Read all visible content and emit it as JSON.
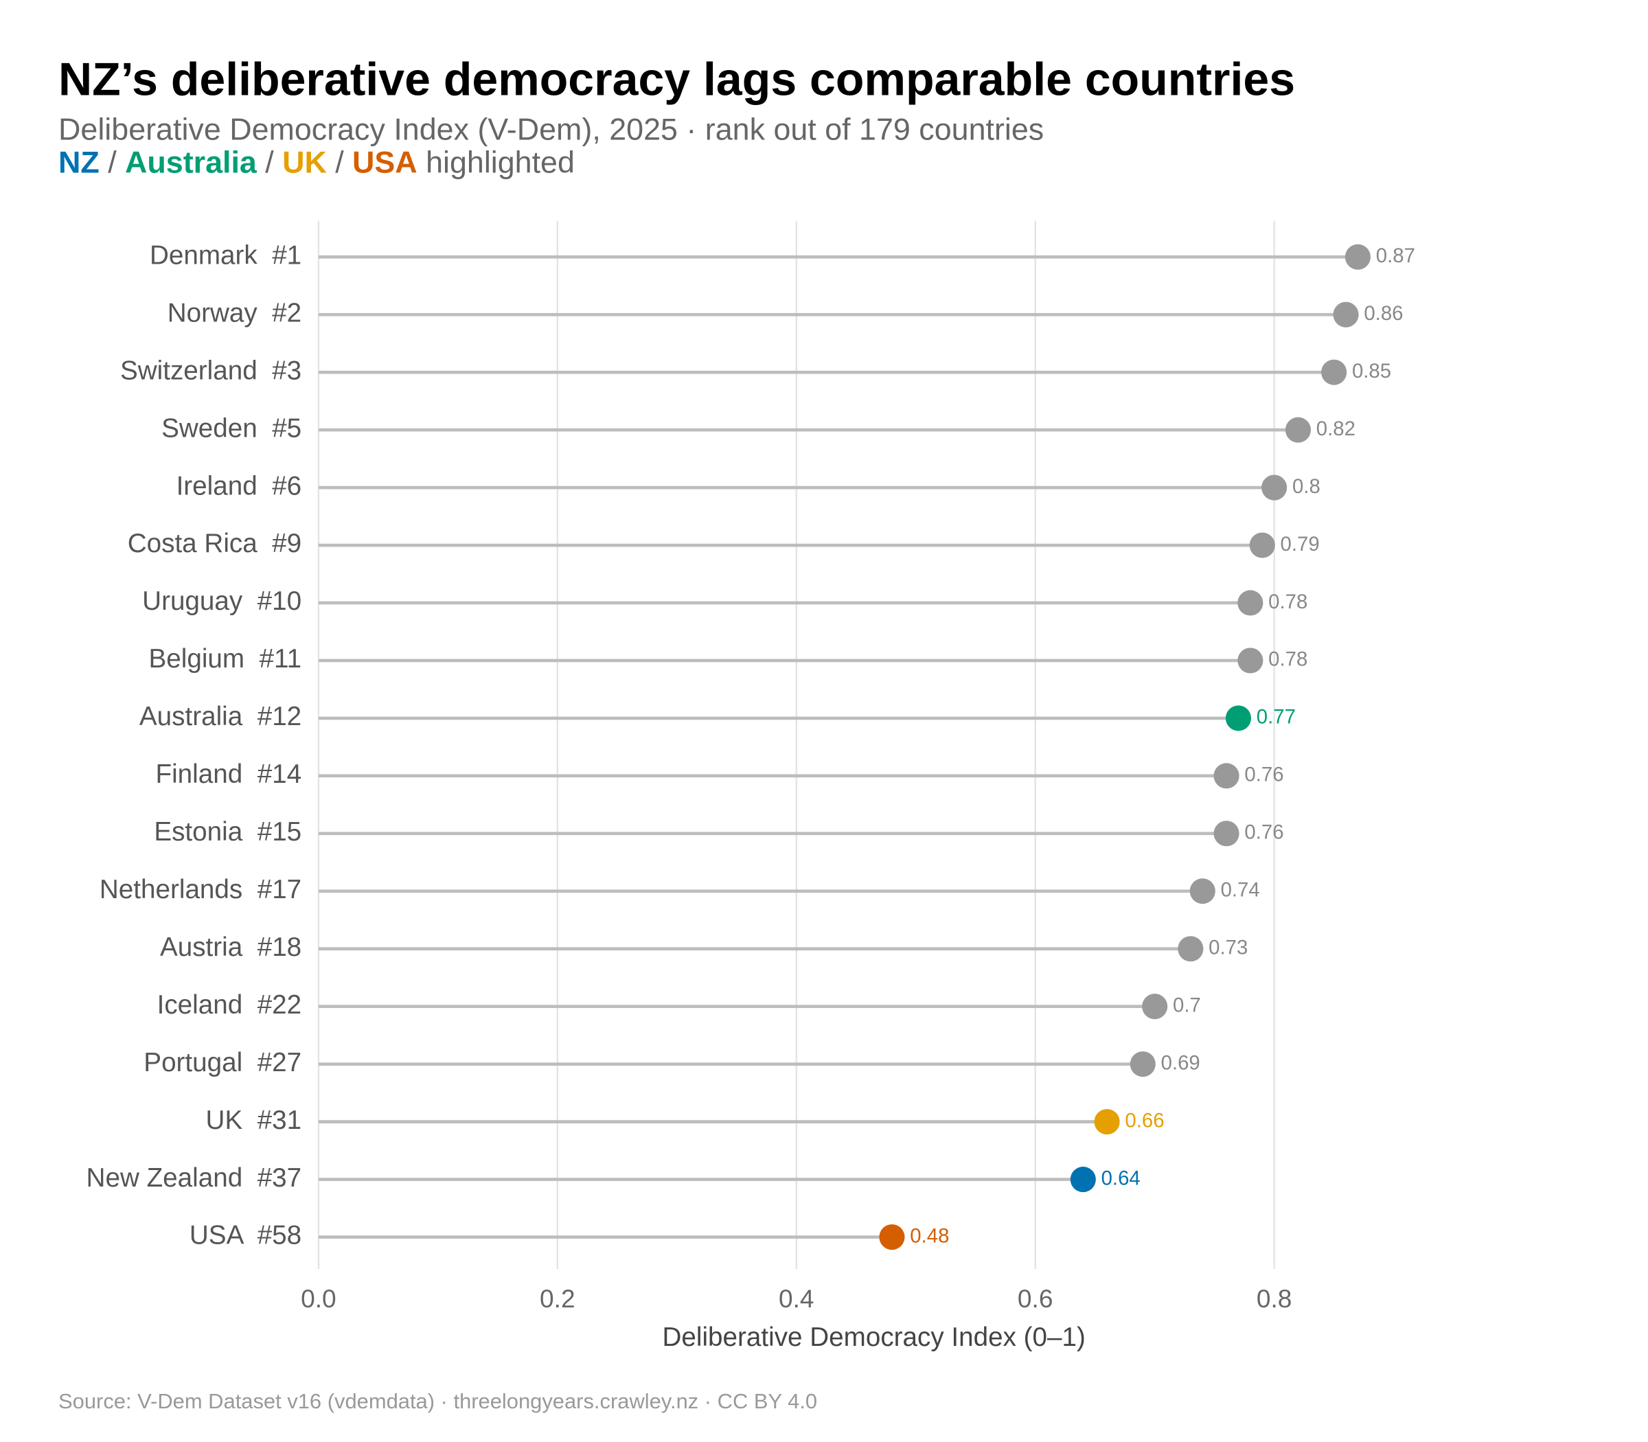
{
  "chart_data": {
    "type": "lollipop",
    "title": "NZ’s deliberative democracy lags comparable countries",
    "subtitle": "Deliberative Democracy Index (V-Dem), 2025 · rank out of 179 countries",
    "highlights": [
      {
        "text": "NZ",
        "color": "#0072b2"
      },
      {
        "text": "Australia",
        "color": "#009e73"
      },
      {
        "text": "UK",
        "color": "#e69f00"
      },
      {
        "text": "USA",
        "color": "#d55e00"
      }
    ],
    "highlight_separator": "/",
    "highlight_suffix": "highlighted",
    "x_label": "Deliberative Democracy Index (0–1)",
    "caption": "Source: V-Dem Dataset v16 (vdemdata) · threelongyears.crawley.nz · CC BY 4.0",
    "categories": [
      "Denmark  #1",
      "Norway  #2",
      "Switzerland  #3",
      "Sweden  #5",
      "Ireland  #6",
      "Costa Rica  #9",
      "Uruguay  #10",
      "Belgium  #11",
      "Australia  #12",
      "Finland  #14",
      "Estonia  #15",
      "Netherlands  #17",
      "Austria  #18",
      "Iceland  #22",
      "Portugal  #27",
      "UK  #31",
      "New Zealand  #37",
      "USA  #58"
    ],
    "values": [
      0.87,
      0.86,
      0.85,
      0.82,
      0.8,
      0.79,
      0.78,
      0.78,
      0.77,
      0.76,
      0.76,
      0.74,
      0.73,
      0.7,
      0.69,
      0.66,
      0.64,
      0.48
    ],
    "colors": [
      "#999999",
      "#999999",
      "#999999",
      "#999999",
      "#999999",
      "#999999",
      "#999999",
      "#999999",
      "#009e73",
      "#999999",
      "#999999",
      "#999999",
      "#999999",
      "#999999",
      "#999999",
      "#e69f00",
      "#0072b2",
      "#d55e00"
    ],
    "xlim": [
      0,
      0.93
    ],
    "xticks": [
      {
        "value": 0,
        "label": "0.0"
      },
      0.2,
      0.4,
      0.6,
      0.8
    ],
    "grid": true
  }
}
